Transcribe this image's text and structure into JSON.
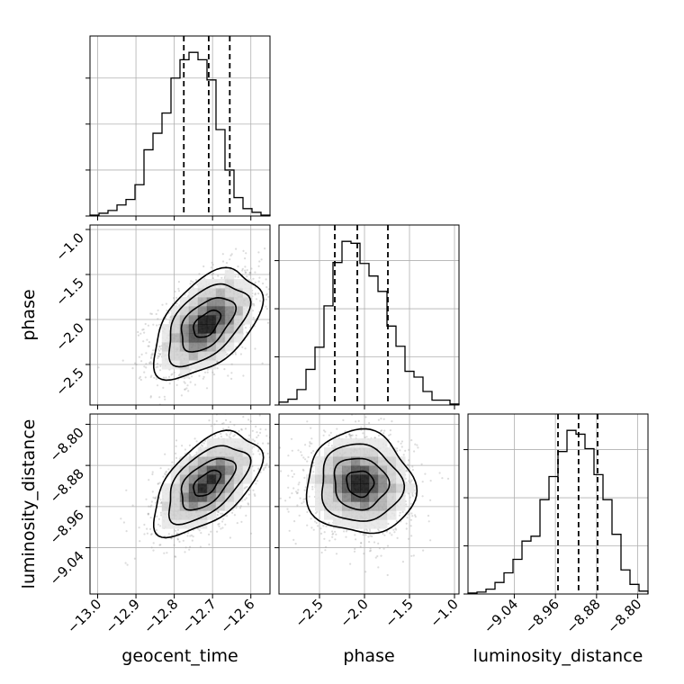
{
  "chart_data": {
    "type": "corner",
    "parameters": [
      "geocent_time",
      "phase",
      "luminosity_distance"
    ],
    "ranges": {
      "geocent_time": [
        -13.02,
        -12.55
      ],
      "phase": [
        -2.95,
        -0.95
      ],
      "luminosity_distance": [
        -9.13,
        -8.78
      ]
    },
    "ticks": {
      "geocent_time": {
        "values": [
          -13.0,
          -12.9,
          -12.8,
          -12.7,
          -12.6
        ],
        "labels": [
          "−13.0",
          "−12.9",
          "−12.8",
          "−12.7",
          "−12.6"
        ]
      },
      "phase": {
        "values": [
          -2.5,
          -2.0,
          -1.5,
          -1.0
        ],
        "labels": [
          "−2.5",
          "−2.0",
          "−1.5",
          "−1.0"
        ]
      },
      "luminosity_distance": {
        "values": [
          -9.04,
          -8.96,
          -8.88,
          -8.8
        ],
        "labels": [
          "−9.04",
          "−8.96",
          "−8.88",
          "−8.80"
        ]
      }
    },
    "quantiles": {
      "geocent_time": [
        -12.775,
        -12.71,
        -12.655
      ],
      "phase": [
        -2.33,
        -2.08,
        -1.74
      ],
      "luminosity_distance": [
        -8.955,
        -8.915,
        -8.878
      ]
    },
    "histograms": {
      "geocent_time": {
        "edges": [
          -13.02,
          -12.9965,
          -12.973,
          -12.9495,
          -12.926,
          -12.9025,
          -12.879,
          -12.8555,
          -12.832,
          -12.8085,
          -12.785,
          -12.7615,
          -12.738,
          -12.7145,
          -12.691,
          -12.6675,
          -12.644,
          -12.6205,
          -12.597,
          -12.5735,
          -12.55
        ],
        "counts": [
          1,
          3,
          6,
          12,
          18,
          34,
          72,
          90,
          112,
          150,
          170,
          178,
          170,
          148,
          94,
          50,
          20,
          8,
          4,
          1
        ]
      },
      "phase": {
        "edges": [
          -2.95,
          -2.85,
          -2.75,
          -2.65,
          -2.55,
          -2.45,
          -2.35,
          -2.25,
          -2.15,
          -2.05,
          -1.95,
          -1.85,
          -1.75,
          -1.65,
          -1.55,
          -1.45,
          -1.35,
          -1.25,
          -1.15,
          -1.05,
          -0.95
        ],
        "counts": [
          3,
          6,
          16,
          37,
          60,
          103,
          148,
          170,
          168,
          147,
          134,
          118,
          82,
          61,
          35,
          29,
          14,
          5,
          5,
          1
        ]
      },
      "luminosity_distance": {
        "edges": [
          -9.13,
          -9.1125,
          -9.095,
          -9.0775,
          -9.06,
          -9.0425,
          -9.025,
          -9.0075,
          -8.99,
          -8.9725,
          -8.955,
          -8.9375,
          -8.92,
          -8.9025,
          -8.885,
          -8.8675,
          -8.85,
          -8.8325,
          -8.815,
          -8.7975,
          -8.78
        ],
        "counts": [
          1,
          2,
          5,
          12,
          22,
          36,
          55,
          60,
          98,
          122,
          148,
          170,
          166,
          151,
          124,
          98,
          62,
          25,
          10,
          3
        ]
      }
    },
    "pairs": [
      {
        "x": "geocent_time",
        "y": "phase",
        "mean": [
          -12.715,
          -2.05
        ],
        "sd": [
          0.07,
          0.3
        ],
        "corr": 0.5
      },
      {
        "x": "geocent_time",
        "y": "luminosity_distance",
        "mean": [
          -12.715,
          -8.915
        ],
        "sd": [
          0.07,
          0.05
        ],
        "corr": 0.55
      },
      {
        "x": "phase",
        "y": "luminosity_distance",
        "mean": [
          -2.05,
          -8.915
        ],
        "sd": [
          0.3,
          0.05
        ],
        "corr": -0.05
      }
    ],
    "colors": {
      "hist_line": "#000000",
      "quantile_line": "#000000",
      "points": "#9a9a9a",
      "contour": "#000000",
      "grid": "#b0b0b0"
    }
  }
}
